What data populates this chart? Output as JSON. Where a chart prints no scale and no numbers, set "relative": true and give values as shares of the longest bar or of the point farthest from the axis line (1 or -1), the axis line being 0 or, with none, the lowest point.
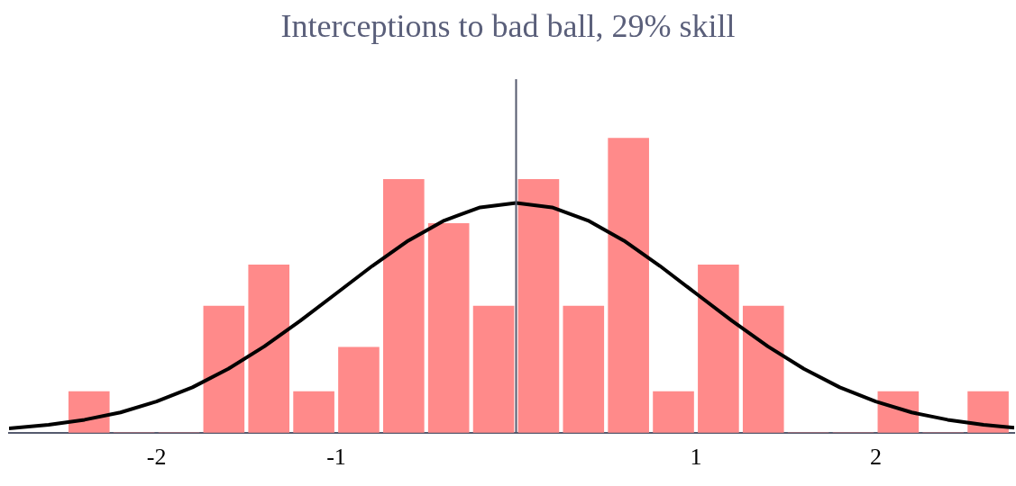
{
  "chart_data": {
    "type": "histogram",
    "title": "Interceptions to bad ball, 29% skill",
    "relative": true,
    "bins": [
      -2.5,
      -2.25,
      -2,
      -1.75,
      -1.5,
      -1.25,
      -1,
      -0.75,
      -0.5,
      -0.25,
      0,
      0.25,
      0.5,
      0.75,
      1,
      1.25,
      1.5,
      1.75,
      2,
      2.25,
      2.5,
      2.75
    ],
    "values": [
      0.14,
      0,
      0,
      0.43,
      0.57,
      0.14,
      0.29,
      0.86,
      0.71,
      0.43,
      0.86,
      0.43,
      1,
      0.14,
      0.57,
      0.43,
      0,
      0,
      0.14,
      0,
      0.14
    ],
    "color": "#ff8a8a",
    "series": [
      {
        "type": "line",
        "color": "#000000",
        "x": [
          -2.82,
          -2.6,
          -2.4,
          -2.2,
          -2,
          -1.8,
          -1.6,
          -1.4,
          -1.2,
          -1,
          -0.8,
          -0.6,
          -0.4,
          -0.2,
          0,
          0.2,
          0.4,
          0.6,
          0.8,
          1,
          1.2,
          1.4,
          1.6,
          1.8,
          2,
          2.2,
          2.4,
          2.6,
          2.77
        ],
        "values": [
          0.015,
          0.027,
          0.044,
          0.069,
          0.106,
          0.154,
          0.217,
          0.293,
          0.38,
          0.473,
          0.566,
          0.652,
          0.72,
          0.765,
          0.78,
          0.765,
          0.72,
          0.652,
          0.566,
          0.473,
          0.38,
          0.293,
          0.217,
          0.154,
          0.106,
          0.069,
          0.044,
          0.027,
          0.017
        ]
      }
    ],
    "xlim": [
      -2.82,
      2.77
    ],
    "xticks": [
      -2,
      -1,
      1,
      2
    ],
    "ref_lines": [
      {
        "axis": "x",
        "value": 0,
        "color": "#555a6e"
      }
    ]
  }
}
